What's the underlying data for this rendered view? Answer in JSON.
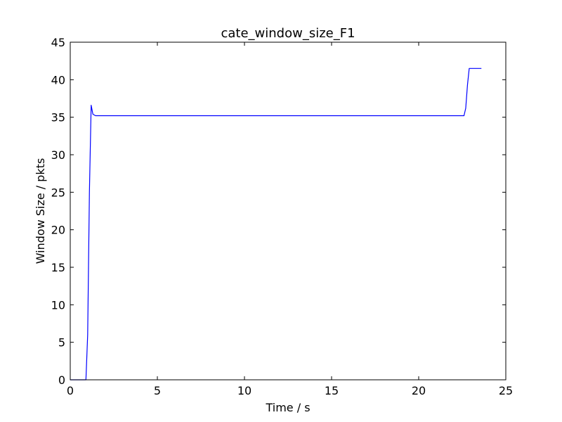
{
  "chart_data": {
    "type": "line",
    "title": "cate_window_size_F1",
    "xlabel": "Time / s",
    "ylabel": "Window Size / pkts",
    "xlim": [
      0,
      25
    ],
    "ylim": [
      0,
      45
    ],
    "xticks": [
      0,
      5,
      10,
      15,
      20,
      25
    ],
    "yticks": [
      0,
      5,
      10,
      15,
      20,
      25,
      30,
      35,
      40,
      45
    ],
    "grid": false,
    "series": [
      {
        "color": "#0000ff",
        "points": [
          [
            0.0,
            0.0
          ],
          [
            0.9,
            0.0
          ],
          [
            1.0,
            6.0
          ],
          [
            1.1,
            25.0
          ],
          [
            1.2,
            36.6
          ],
          [
            1.3,
            35.4
          ],
          [
            1.45,
            35.2
          ],
          [
            22.6,
            35.2
          ],
          [
            22.7,
            36.2
          ],
          [
            22.8,
            39.3
          ],
          [
            22.9,
            41.5
          ],
          [
            23.6,
            41.5
          ]
        ]
      }
    ]
  }
}
